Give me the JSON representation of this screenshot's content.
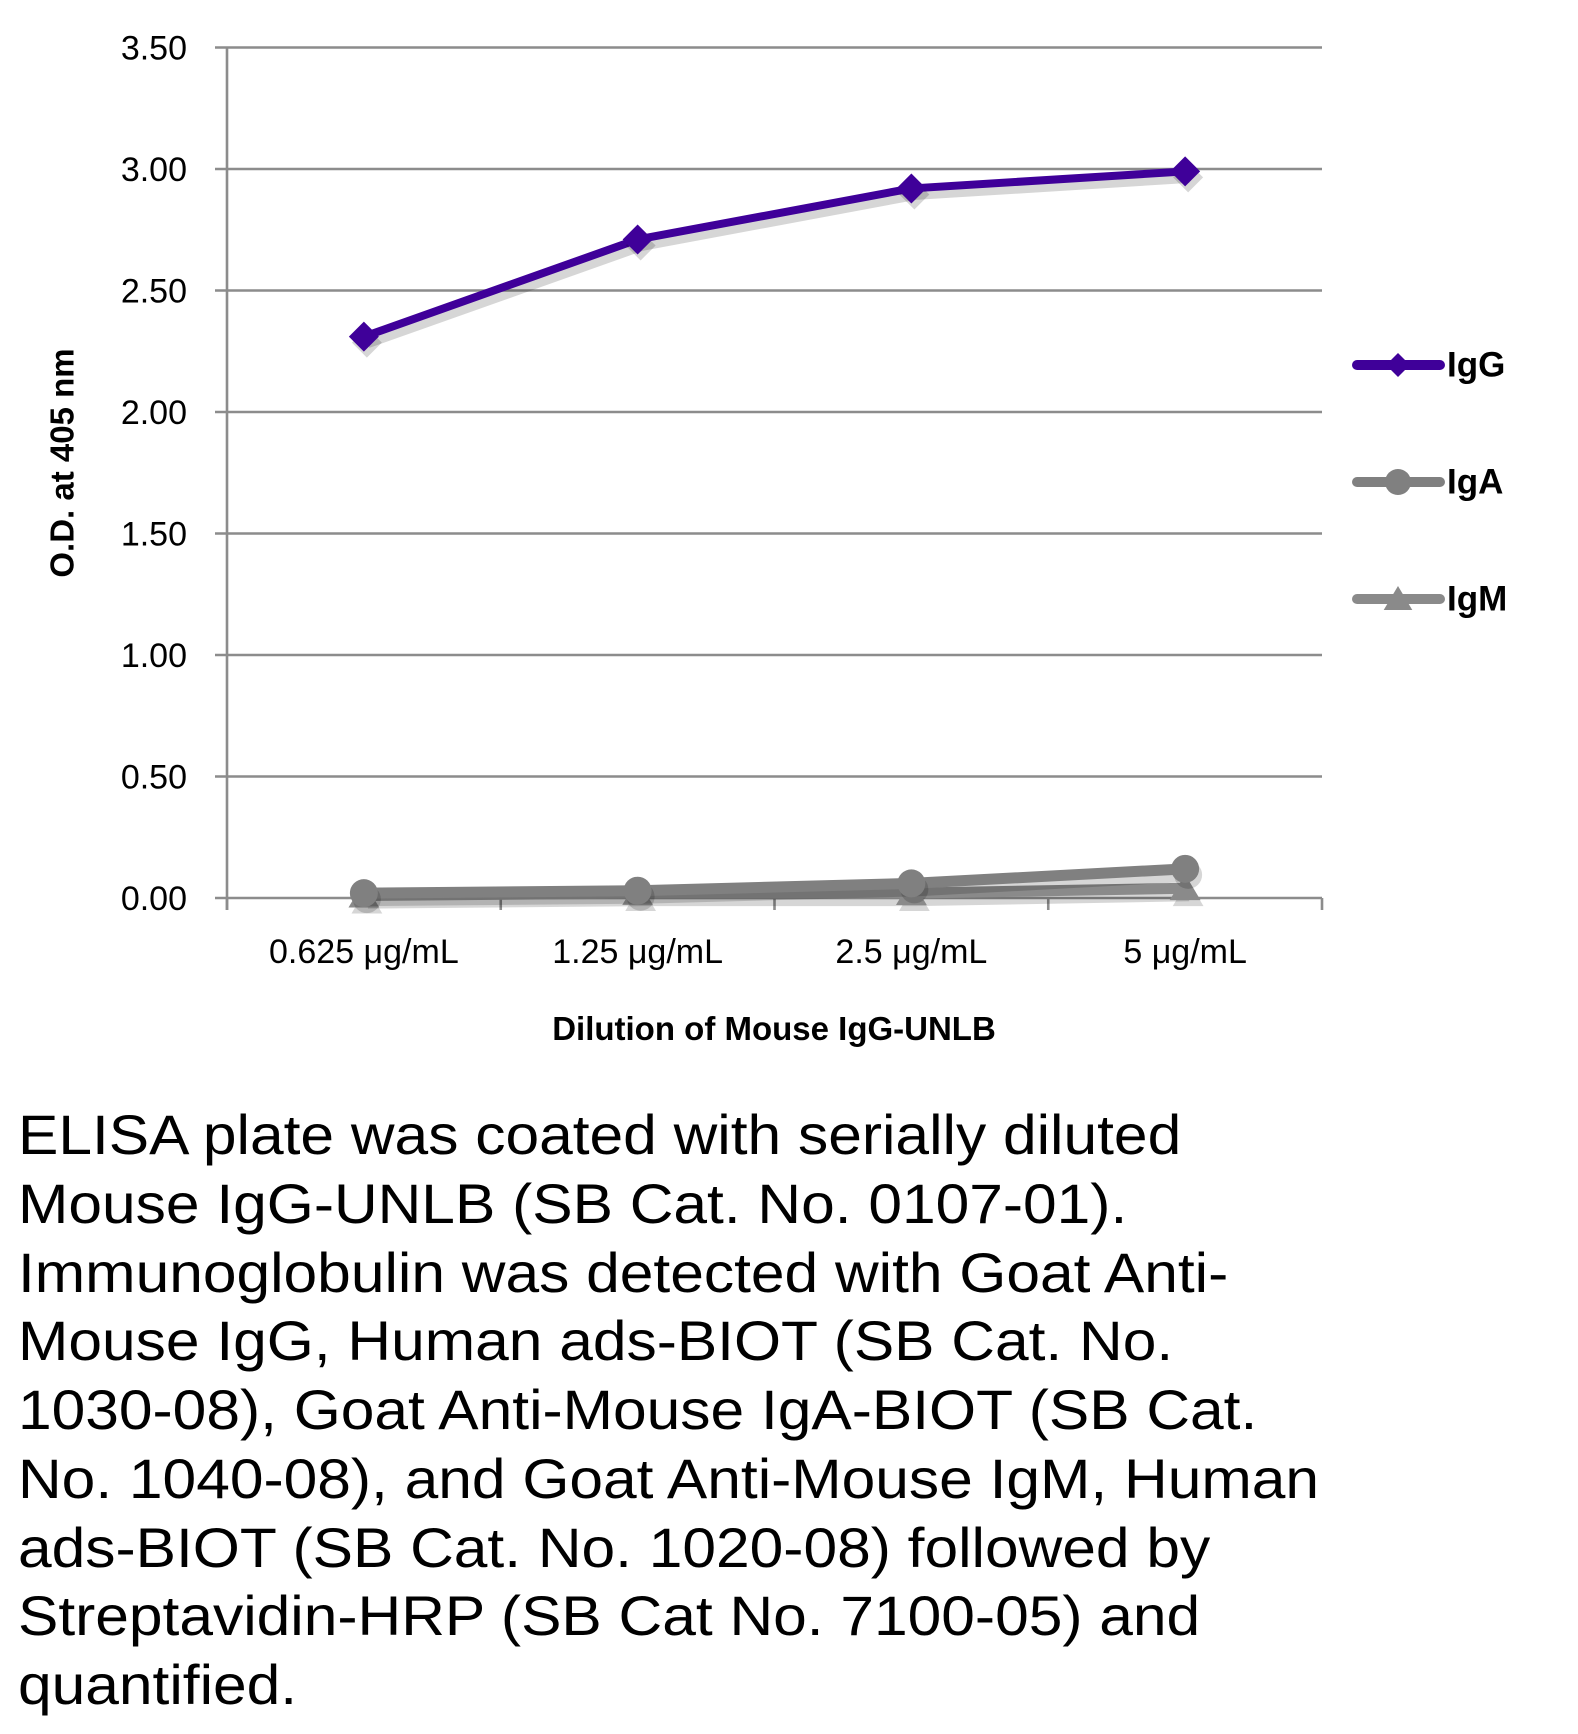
{
  "chart_data": {
    "type": "line",
    "title": "",
    "xlabel": "Dilution of Mouse IgG-UNLB",
    "ylabel": "O.D. at 405 nm",
    "categories": [
      "0.625 μg/mL",
      "1.25 μg/mL",
      "2.5 μg/mL",
      "5 μg/mL"
    ],
    "ylim": [
      0,
      3.5
    ],
    "yticks": [
      0,
      0.5,
      1.0,
      1.5,
      2.0,
      2.5,
      3.0,
      3.5
    ],
    "ytick_labels": [
      "0.00",
      "0.50",
      "1.00",
      "1.50",
      "2.00",
      "2.50",
      "3.00",
      "3.50"
    ],
    "grid": true,
    "legend_position": "right",
    "series": [
      {
        "name": "IgG",
        "values": [
          2.31,
          2.71,
          2.92,
          2.99
        ],
        "color": "#3f0099",
        "marker": "diamond"
      },
      {
        "name": "IgA",
        "values": [
          0.02,
          0.03,
          0.06,
          0.12
        ],
        "color": "#808080",
        "marker": "circle"
      },
      {
        "name": "IgM",
        "values": [
          0.01,
          0.02,
          0.02,
          0.04
        ],
        "color": "#8a8a8a",
        "marker": "triangle"
      }
    ],
    "gridline_color": "#8c8c8c"
  },
  "caption": {
    "lines": [
      "ELISA plate was coated with serially diluted",
      "Mouse IgG-UNLB (SB Cat. No. 0107-01).",
      "Immunoglobulin was detected with Goat Anti-",
      "Mouse IgG, Human ads-BIOT (SB Cat. No.",
      "1030-08), Goat Anti-Mouse IgA-BIOT (SB Cat.",
      "No. 1040-08), and Goat Anti-Mouse IgM, Human",
      "ads-BIOT (SB Cat. No. 1020-08) followed by",
      "Streptavidin-HRP (SB Cat No. 7100-05) and",
      "quantified."
    ]
  }
}
